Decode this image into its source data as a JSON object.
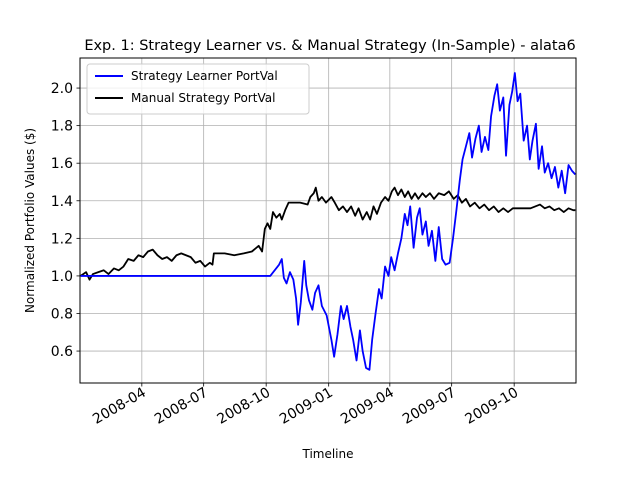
{
  "chart_data": {
    "type": "line",
    "title": "Exp. 1: Strategy Learner vs. & Manual Strategy (In-Sample) - alata6",
    "xlabel": "Timeline",
    "ylabel": "Normalized Portfolio Values ($)",
    "xlim": [
      "2008-01-01",
      "2009-12-31"
    ],
    "ylim": [
      0.43,
      2.16
    ],
    "x_ticks": [
      {
        "value": "2008-04-01",
        "label": "2008-04"
      },
      {
        "value": "2008-07-01",
        "label": "2008-07"
      },
      {
        "value": "2008-10-01",
        "label": "2008-10"
      },
      {
        "value": "2009-01-01",
        "label": "2009-01"
      },
      {
        "value": "2009-04-01",
        "label": "2009-04"
      },
      {
        "value": "2009-07-01",
        "label": "2009-07"
      },
      {
        "value": "2009-10-01",
        "label": "2009-10"
      }
    ],
    "y_ticks": [
      0.6,
      0.8,
      1.0,
      1.2,
      1.4,
      1.6,
      1.8,
      2.0
    ],
    "grid": true,
    "legend_position": "top-left",
    "series": [
      {
        "name": "Strategy Learner PortVal",
        "color": "#0000ff",
        "points": [
          [
            "2008-01-02",
            1.0
          ],
          [
            "2008-01-15",
            1.0
          ],
          [
            "2008-03-01",
            1.0
          ],
          [
            "2008-06-01",
            1.0
          ],
          [
            "2008-09-01",
            1.0
          ],
          [
            "2008-10-07",
            1.0
          ],
          [
            "2008-10-20",
            1.06
          ],
          [
            "2008-10-24",
            1.09
          ],
          [
            "2008-10-27",
            0.99
          ],
          [
            "2008-10-31",
            0.96
          ],
          [
            "2008-11-05",
            1.02
          ],
          [
            "2008-11-10",
            0.98
          ],
          [
            "2008-11-14",
            0.88
          ],
          [
            "2008-11-17",
            0.74
          ],
          [
            "2008-11-21",
            0.86
          ],
          [
            "2008-11-26",
            1.08
          ],
          [
            "2008-11-29",
            0.95
          ],
          [
            "2008-12-03",
            0.87
          ],
          [
            "2008-12-08",
            0.82
          ],
          [
            "2008-12-12",
            0.91
          ],
          [
            "2008-12-17",
            0.95
          ],
          [
            "2008-12-22",
            0.84
          ],
          [
            "2008-12-29",
            0.79
          ],
          [
            "2009-01-05",
            0.66
          ],
          [
            "2009-01-09",
            0.57
          ],
          [
            "2009-01-14",
            0.69
          ],
          [
            "2009-01-19",
            0.84
          ],
          [
            "2009-01-23",
            0.77
          ],
          [
            "2009-01-28",
            0.84
          ],
          [
            "2009-02-02",
            0.73
          ],
          [
            "2009-02-06",
            0.66
          ],
          [
            "2009-02-11",
            0.55
          ],
          [
            "2009-02-16",
            0.71
          ],
          [
            "2009-02-20",
            0.6
          ],
          [
            "2009-02-25",
            0.51
          ],
          [
            "2009-03-02",
            0.5
          ],
          [
            "2009-03-06",
            0.66
          ],
          [
            "2009-03-11",
            0.8
          ],
          [
            "2009-03-16",
            0.93
          ],
          [
            "2009-03-20",
            0.88
          ],
          [
            "2009-03-25",
            1.05
          ],
          [
            "2009-03-30",
            1.0
          ],
          [
            "2009-04-03",
            1.1
          ],
          [
            "2009-04-08",
            1.03
          ],
          [
            "2009-04-13",
            1.12
          ],
          [
            "2009-04-18",
            1.2
          ],
          [
            "2009-04-23",
            1.33
          ],
          [
            "2009-04-27",
            1.27
          ],
          [
            "2009-05-01",
            1.37
          ],
          [
            "2009-05-06",
            1.15
          ],
          [
            "2009-05-11",
            1.31
          ],
          [
            "2009-05-15",
            1.36
          ],
          [
            "2009-05-19",
            1.22
          ],
          [
            "2009-05-24",
            1.29
          ],
          [
            "2009-05-28",
            1.16
          ],
          [
            "2009-06-02",
            1.24
          ],
          [
            "2009-06-07",
            1.08
          ],
          [
            "2009-06-12",
            1.26
          ],
          [
            "2009-06-17",
            1.09
          ],
          [
            "2009-06-22",
            1.06
          ],
          [
            "2009-06-28",
            1.07
          ],
          [
            "2009-07-03",
            1.2
          ],
          [
            "2009-07-08",
            1.35
          ],
          [
            "2009-07-13",
            1.51
          ],
          [
            "2009-07-17",
            1.62
          ],
          [
            "2009-07-22",
            1.69
          ],
          [
            "2009-07-27",
            1.76
          ],
          [
            "2009-07-31",
            1.63
          ],
          [
            "2009-08-05",
            1.73
          ],
          [
            "2009-08-10",
            1.8
          ],
          [
            "2009-08-14",
            1.66
          ],
          [
            "2009-08-19",
            1.74
          ],
          [
            "2009-08-24",
            1.67
          ],
          [
            "2009-08-28",
            1.85
          ],
          [
            "2009-09-02",
            1.96
          ],
          [
            "2009-09-06",
            2.02
          ],
          [
            "2009-09-10",
            1.88
          ],
          [
            "2009-09-15",
            1.95
          ],
          [
            "2009-09-19",
            1.64
          ],
          [
            "2009-09-24",
            1.91
          ],
          [
            "2009-09-28",
            1.98
          ],
          [
            "2009-10-02",
            2.08
          ],
          [
            "2009-10-06",
            1.93
          ],
          [
            "2009-10-10",
            1.97
          ],
          [
            "2009-10-15",
            1.72
          ],
          [
            "2009-10-20",
            1.8
          ],
          [
            "2009-10-24",
            1.62
          ],
          [
            "2009-10-28",
            1.72
          ],
          [
            "2009-11-02",
            1.81
          ],
          [
            "2009-11-06",
            1.57
          ],
          [
            "2009-11-11",
            1.69
          ],
          [
            "2009-11-15",
            1.55
          ],
          [
            "2009-11-20",
            1.6
          ],
          [
            "2009-11-25",
            1.52
          ],
          [
            "2009-11-30",
            1.58
          ],
          [
            "2009-12-05",
            1.47
          ],
          [
            "2009-12-10",
            1.56
          ],
          [
            "2009-12-15",
            1.44
          ],
          [
            "2009-12-20",
            1.59
          ],
          [
            "2009-12-25",
            1.56
          ],
          [
            "2009-12-30",
            1.54
          ]
        ]
      },
      {
        "name": "Manual Strategy PortVal",
        "color": "#000000",
        "points": [
          [
            "2008-01-02",
            1.0
          ],
          [
            "2008-01-10",
            1.02
          ],
          [
            "2008-01-15",
            0.98
          ],
          [
            "2008-01-20",
            1.01
          ],
          [
            "2008-01-28",
            1.02
          ],
          [
            "2008-02-05",
            1.03
          ],
          [
            "2008-02-12",
            1.01
          ],
          [
            "2008-02-20",
            1.04
          ],
          [
            "2008-02-27",
            1.03
          ],
          [
            "2008-03-05",
            1.05
          ],
          [
            "2008-03-12",
            1.09
          ],
          [
            "2008-03-20",
            1.08
          ],
          [
            "2008-03-27",
            1.11
          ],
          [
            "2008-04-03",
            1.1
          ],
          [
            "2008-04-10",
            1.13
          ],
          [
            "2008-04-17",
            1.14
          ],
          [
            "2008-04-24",
            1.11
          ],
          [
            "2008-05-01",
            1.09
          ],
          [
            "2008-05-08",
            1.1
          ],
          [
            "2008-05-15",
            1.08
          ],
          [
            "2008-05-22",
            1.11
          ],
          [
            "2008-05-29",
            1.12
          ],
          [
            "2008-06-05",
            1.11
          ],
          [
            "2008-06-12",
            1.1
          ],
          [
            "2008-06-19",
            1.07
          ],
          [
            "2008-06-26",
            1.08
          ],
          [
            "2008-07-03",
            1.05
          ],
          [
            "2008-07-10",
            1.07
          ],
          [
            "2008-07-14",
            1.06
          ],
          [
            "2008-07-16",
            1.12
          ],
          [
            "2008-08-01",
            1.12
          ],
          [
            "2008-08-15",
            1.11
          ],
          [
            "2008-08-29",
            1.12
          ],
          [
            "2008-09-10",
            1.13
          ],
          [
            "2008-09-20",
            1.16
          ],
          [
            "2008-09-25",
            1.13
          ],
          [
            "2008-09-29",
            1.25
          ],
          [
            "2008-10-03",
            1.28
          ],
          [
            "2008-10-07",
            1.25
          ],
          [
            "2008-10-11",
            1.34
          ],
          [
            "2008-10-16",
            1.31
          ],
          [
            "2008-10-21",
            1.33
          ],
          [
            "2008-10-24",
            1.3
          ],
          [
            "2008-10-29",
            1.35
          ],
          [
            "2008-11-03",
            1.39
          ],
          [
            "2008-11-10",
            1.39
          ],
          [
            "2008-11-20",
            1.39
          ],
          [
            "2008-12-01",
            1.38
          ],
          [
            "2008-12-05",
            1.42
          ],
          [
            "2008-12-10",
            1.44
          ],
          [
            "2008-12-13",
            1.47
          ],
          [
            "2008-12-17",
            1.4
          ],
          [
            "2008-12-22",
            1.42
          ],
          [
            "2008-12-28",
            1.39
          ],
          [
            "2009-01-05",
            1.42
          ],
          [
            "2009-01-10",
            1.39
          ],
          [
            "2009-01-16",
            1.35
          ],
          [
            "2009-01-22",
            1.37
          ],
          [
            "2009-01-28",
            1.34
          ],
          [
            "2009-02-03",
            1.37
          ],
          [
            "2009-02-09",
            1.32
          ],
          [
            "2009-02-14",
            1.36
          ],
          [
            "2009-02-20",
            1.3
          ],
          [
            "2009-02-26",
            1.34
          ],
          [
            "2009-03-03",
            1.3
          ],
          [
            "2009-03-08",
            1.37
          ],
          [
            "2009-03-13",
            1.33
          ],
          [
            "2009-03-19",
            1.39
          ],
          [
            "2009-03-25",
            1.42
          ],
          [
            "2009-03-30",
            1.4
          ],
          [
            "2009-04-04",
            1.45
          ],
          [
            "2009-04-08",
            1.47
          ],
          [
            "2009-04-13",
            1.43
          ],
          [
            "2009-04-18",
            1.46
          ],
          [
            "2009-04-23",
            1.42
          ],
          [
            "2009-04-28",
            1.45
          ],
          [
            "2009-05-03",
            1.41
          ],
          [
            "2009-05-08",
            1.44
          ],
          [
            "2009-05-13",
            1.41
          ],
          [
            "2009-05-19",
            1.44
          ],
          [
            "2009-05-24",
            1.42
          ],
          [
            "2009-05-30",
            1.44
          ],
          [
            "2009-06-05",
            1.41
          ],
          [
            "2009-06-12",
            1.44
          ],
          [
            "2009-06-20",
            1.43
          ],
          [
            "2009-06-27",
            1.45
          ],
          [
            "2009-07-04",
            1.41
          ],
          [
            "2009-07-10",
            1.43
          ],
          [
            "2009-07-16",
            1.39
          ],
          [
            "2009-07-22",
            1.41
          ],
          [
            "2009-07-28",
            1.37
          ],
          [
            "2009-08-04",
            1.39
          ],
          [
            "2009-08-11",
            1.36
          ],
          [
            "2009-08-18",
            1.38
          ],
          [
            "2009-08-25",
            1.35
          ],
          [
            "2009-09-01",
            1.37
          ],
          [
            "2009-09-08",
            1.34
          ],
          [
            "2009-09-15",
            1.36
          ],
          [
            "2009-09-22",
            1.34
          ],
          [
            "2009-09-29",
            1.36
          ],
          [
            "2009-10-06",
            1.36
          ],
          [
            "2009-10-15",
            1.36
          ],
          [
            "2009-10-25",
            1.36
          ],
          [
            "2009-11-01",
            1.37
          ],
          [
            "2009-11-08",
            1.38
          ],
          [
            "2009-11-15",
            1.36
          ],
          [
            "2009-11-22",
            1.37
          ],
          [
            "2009-11-29",
            1.35
          ],
          [
            "2009-12-06",
            1.36
          ],
          [
            "2009-12-13",
            1.34
          ],
          [
            "2009-12-20",
            1.36
          ],
          [
            "2009-12-27",
            1.35
          ],
          [
            "2009-12-30",
            1.35
          ]
        ]
      }
    ]
  }
}
